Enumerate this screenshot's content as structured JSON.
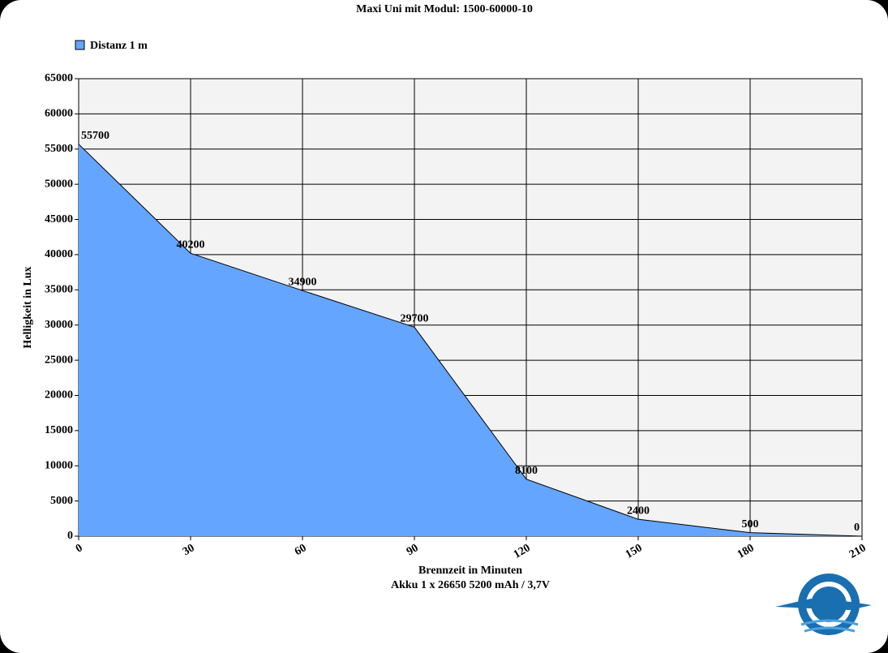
{
  "chart_data": {
    "type": "area",
    "title": "Maxi Uni mit Modul: 1500-60000-10",
    "x_label": "Brennzeit in Minuten",
    "x_sublabel": "Akku  1 x 26650 5200 mAh / 3,7V",
    "y_label": "Helligkeit in Lux",
    "x": [
      0,
      30,
      60,
      90,
      120,
      150,
      180,
      210
    ],
    "series": [
      {
        "name": "Distanz 1 m",
        "color": "#64a5ff",
        "values": [
          55700,
          40200,
          34900,
          29700,
          8100,
          2400,
          500,
          0
        ]
      }
    ],
    "xlim": [
      0,
      210
    ],
    "xticks": [
      0,
      30,
      60,
      90,
      120,
      150,
      180,
      210
    ],
    "ylim": [
      0,
      65000
    ],
    "yticks": [
      0,
      5000,
      10000,
      15000,
      20000,
      25000,
      30000,
      35000,
      40000,
      45000,
      50000,
      55000,
      60000,
      65000
    ],
    "grid": true,
    "legend": "top-left"
  }
}
